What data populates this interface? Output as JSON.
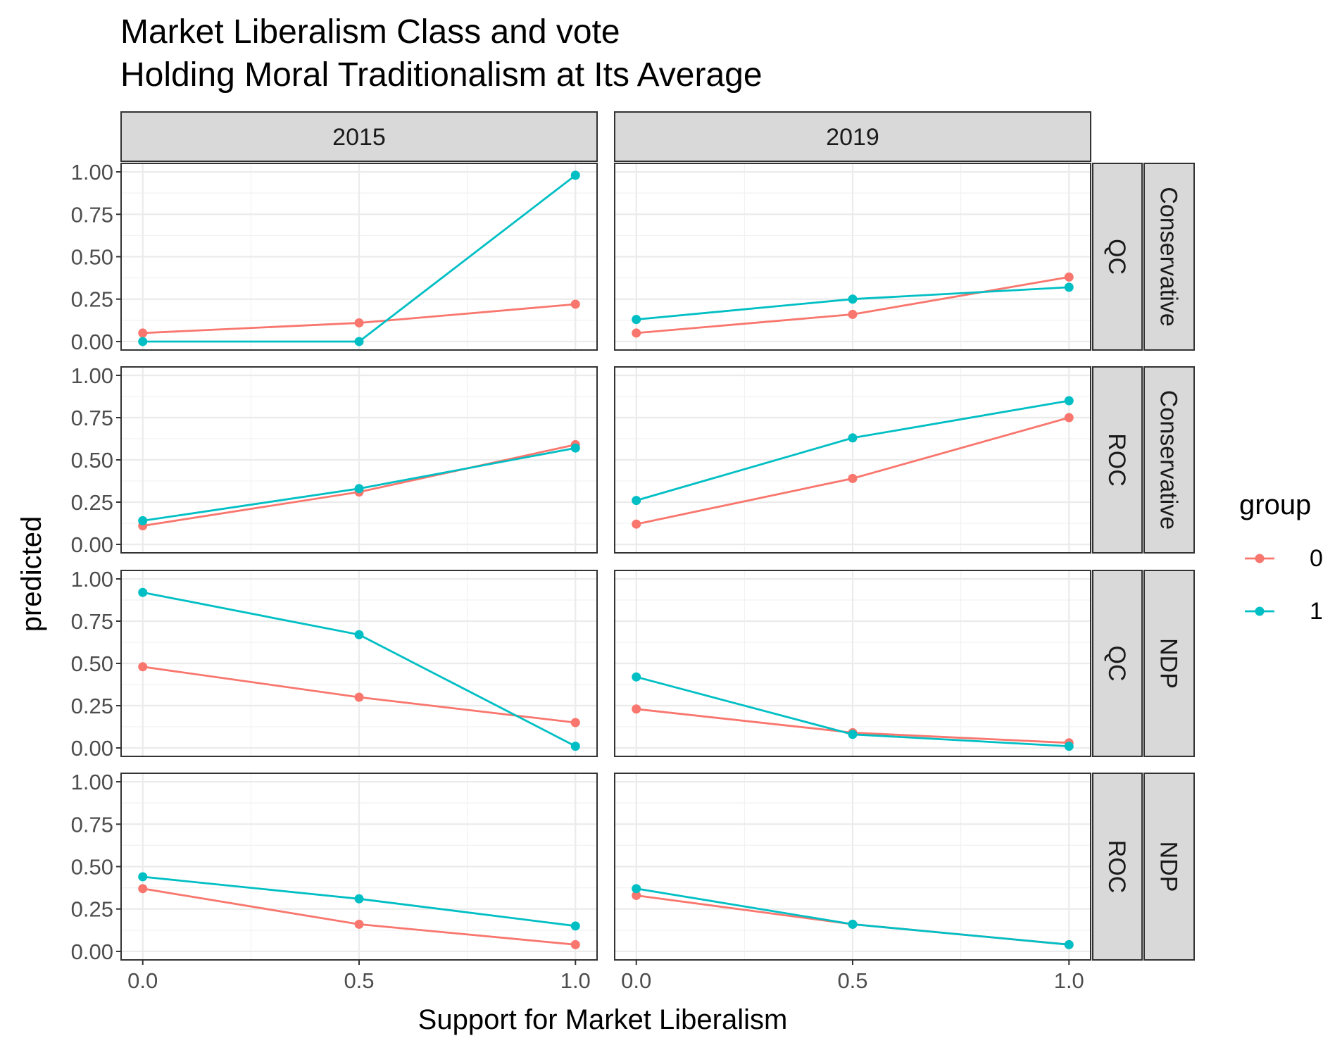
{
  "chart_data": {
    "type": "line",
    "title": "Market Liberalism Class and vote",
    "subtitle": "Holding Moral Traditionalism at Its Average",
    "xlabel": "Support for Market Liberalism",
    "ylabel": "predicted",
    "x": [
      0.0,
      0.5,
      1.0
    ],
    "x_ticks": [
      "0.0",
      "0.5",
      "1.0"
    ],
    "y_ticks": [
      "0.00",
      "0.25",
      "0.50",
      "0.75",
      "1.00"
    ],
    "xlim": [
      -0.05,
      1.05
    ],
    "ylim": [
      -0.05,
      1.05
    ],
    "grid": true,
    "legend": {
      "title": "group",
      "position": "right",
      "entries": [
        {
          "label": "0",
          "color": "#F8766D"
        },
        {
          "label": "1",
          "color": "#00BFC4"
        }
      ]
    },
    "column_facets": [
      "2015",
      "2019"
    ],
    "row_facets": [
      {
        "region": "QC",
        "party": "Conservative"
      },
      {
        "region": "ROC",
        "party": "Conservative"
      },
      {
        "region": "QC",
        "party": "NDP"
      },
      {
        "region": "ROC",
        "party": "NDP"
      }
    ],
    "panels": [
      {
        "column": "2015",
        "region": "QC",
        "party": "Conservative",
        "series": [
          {
            "name": "0",
            "values": [
              0.05,
              0.11,
              0.22
            ]
          },
          {
            "name": "1",
            "values": [
              0.0,
              0.0,
              0.98
            ]
          }
        ]
      },
      {
        "column": "2019",
        "region": "QC",
        "party": "Conservative",
        "series": [
          {
            "name": "0",
            "values": [
              0.05,
              0.16,
              0.38
            ]
          },
          {
            "name": "1",
            "values": [
              0.13,
              0.25,
              0.32
            ]
          }
        ]
      },
      {
        "column": "2015",
        "region": "ROC",
        "party": "Conservative",
        "series": [
          {
            "name": "0",
            "values": [
              0.11,
              0.31,
              0.59
            ]
          },
          {
            "name": "1",
            "values": [
              0.14,
              0.33,
              0.57
            ]
          }
        ]
      },
      {
        "column": "2019",
        "region": "ROC",
        "party": "Conservative",
        "series": [
          {
            "name": "0",
            "values": [
              0.12,
              0.39,
              0.75
            ]
          },
          {
            "name": "1",
            "values": [
              0.26,
              0.63,
              0.85
            ]
          }
        ]
      },
      {
        "column": "2015",
        "region": "QC",
        "party": "NDP",
        "series": [
          {
            "name": "0",
            "values": [
              0.48,
              0.3,
              0.15
            ]
          },
          {
            "name": "1",
            "values": [
              0.92,
              0.67,
              0.01
            ]
          }
        ]
      },
      {
        "column": "2019",
        "region": "QC",
        "party": "NDP",
        "series": [
          {
            "name": "0",
            "values": [
              0.23,
              0.09,
              0.03
            ]
          },
          {
            "name": "1",
            "values": [
              0.42,
              0.08,
              0.01
            ]
          }
        ]
      },
      {
        "column": "2015",
        "region": "ROC",
        "party": "NDP",
        "series": [
          {
            "name": "0",
            "values": [
              0.37,
              0.16,
              0.04
            ]
          },
          {
            "name": "1",
            "values": [
              0.44,
              0.31,
              0.15
            ]
          }
        ]
      },
      {
        "column": "2019",
        "region": "ROC",
        "party": "NDP",
        "series": [
          {
            "name": "0",
            "values": [
              0.33,
              0.16,
              0.04
            ]
          },
          {
            "name": "1",
            "values": [
              0.37,
              0.16,
              0.04
            ]
          }
        ]
      }
    ]
  }
}
